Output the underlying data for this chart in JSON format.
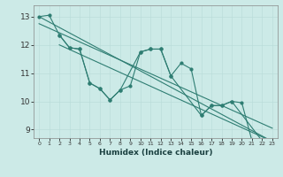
{
  "xlabel": "Humidex (Indice chaleur)",
  "xlim": [
    -0.5,
    23.5
  ],
  "ylim": [
    8.7,
    13.4
  ],
  "yticks": [
    9,
    10,
    11,
    12,
    13
  ],
  "xticks": [
    0,
    1,
    2,
    3,
    4,
    5,
    6,
    7,
    8,
    9,
    10,
    11,
    12,
    13,
    14,
    15,
    16,
    17,
    18,
    19,
    20,
    21,
    22,
    23
  ],
  "bg_color": "#cceae7",
  "line_color": "#2e7d72",
  "trend_lines": [
    {
      "x": [
        0,
        23
      ],
      "y": [
        13.0,
        8.58
      ]
    },
    {
      "x": [
        0,
        23
      ],
      "y": [
        12.75,
        9.05
      ]
    },
    {
      "x": [
        2,
        23
      ],
      "y": [
        12.0,
        8.58
      ]
    }
  ],
  "zigzag1_x": [
    0,
    1,
    2,
    3,
    4,
    5,
    6,
    7,
    8,
    10,
    11,
    12,
    13,
    16,
    17,
    18,
    19,
    22,
    23
  ],
  "zigzag1_y": [
    13.0,
    13.05,
    12.35,
    11.9,
    11.85,
    10.65,
    10.45,
    10.05,
    10.4,
    11.75,
    11.85,
    11.85,
    10.9,
    9.5,
    9.85,
    9.85,
    10.0,
    8.6,
    8.58
  ],
  "zigzag2_x": [
    2,
    3,
    4,
    5,
    6,
    7,
    8,
    9,
    10,
    11,
    12,
    13,
    14,
    15,
    16,
    17,
    18,
    19,
    20,
    21,
    22,
    23
  ],
  "zigzag2_y": [
    12.35,
    11.9,
    11.85,
    10.65,
    10.45,
    10.05,
    10.4,
    10.55,
    11.75,
    11.85,
    11.85,
    10.9,
    11.35,
    11.15,
    9.5,
    9.85,
    9.85,
    10.0,
    9.95,
    8.6,
    8.6,
    8.58
  ]
}
